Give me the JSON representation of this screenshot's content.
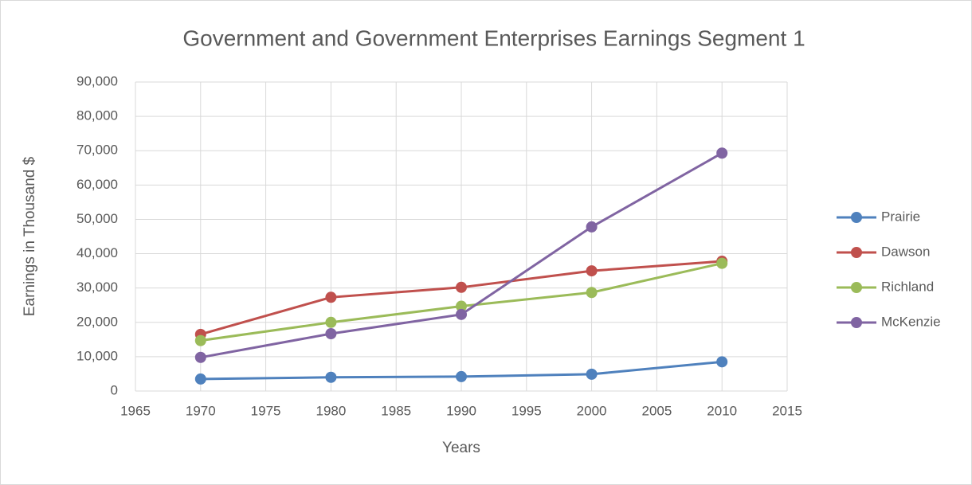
{
  "chart_data": {
    "type": "line",
    "title": "Government and Government Enterprises Earnings Segment 1",
    "x_label": "Years",
    "y_label": "Earnings in Thousand $",
    "x": [
      1970,
      1980,
      1990,
      2000,
      2010
    ],
    "series": [
      {
        "name": "Prairie",
        "color": "#4f81bd",
        "values": [
          3500,
          4000,
          4200,
          4900,
          8500
        ]
      },
      {
        "name": "Dawson",
        "color": "#c0504d",
        "values": [
          16500,
          27300,
          30200,
          35000,
          37800
        ]
      },
      {
        "name": "Richland",
        "color": "#9bbb59",
        "values": [
          14700,
          20000,
          24700,
          28700,
          37200
        ]
      },
      {
        "name": "McKenzie",
        "color": "#8064a2",
        "values": [
          9800,
          16700,
          22300,
          47800,
          69300
        ]
      }
    ],
    "xlim": [
      1965,
      2015
    ],
    "xticks": [
      1965,
      1970,
      1975,
      1980,
      1985,
      1990,
      1995,
      2000,
      2005,
      2010,
      2015
    ],
    "ylim": [
      0,
      90000
    ],
    "yticks": [
      0,
      {
        "value": 10000,
        "label": "10,000"
      },
      {
        "value": 20000,
        "label": "20,000"
      },
      {
        "value": 30000,
        "label": "30,000"
      },
      {
        "value": 40000,
        "label": "40,000"
      },
      {
        "value": 50000,
        "label": "50,000"
      },
      {
        "value": 60000,
        "label": "60,000"
      },
      {
        "value": 70000,
        "label": "70,000"
      },
      {
        "value": 80000,
        "label": "80,000"
      },
      {
        "value": 90000,
        "label": "90,000"
      }
    ],
    "grid": true,
    "legend": "right"
  }
}
